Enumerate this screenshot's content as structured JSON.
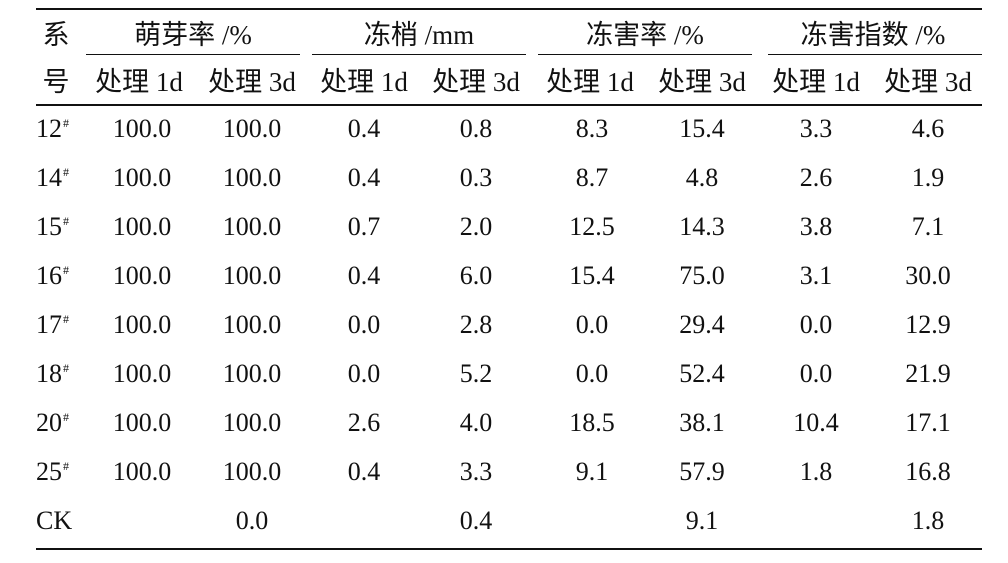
{
  "table": {
    "header": {
      "id_top": "系",
      "id_bottom": "号",
      "groups": [
        "萌芽率 /%",
        "冻梢 /mm",
        "冻害率 /%",
        "冻害指数 /%"
      ],
      "sub": [
        "处理 1d",
        "处理 3d",
        "处理 1d",
        "处理 3d",
        "处理 1d",
        "处理 3d",
        "处理 1d",
        "处理 3d"
      ]
    },
    "rows": [
      {
        "id": "12",
        "mark": "#",
        "values": [
          "100.0",
          "100.0",
          "0.4",
          "0.8",
          "8.3",
          "15.4",
          "3.3",
          "4.6"
        ]
      },
      {
        "id": "14",
        "mark": "#",
        "values": [
          "100.0",
          "100.0",
          "0.4",
          "0.3",
          "8.7",
          "4.8",
          "2.6",
          "1.9"
        ]
      },
      {
        "id": "15",
        "mark": "#",
        "values": [
          "100.0",
          "100.0",
          "0.7",
          "2.0",
          "12.5",
          "14.3",
          "3.8",
          "7.1"
        ]
      },
      {
        "id": "16",
        "mark": "#",
        "values": [
          "100.0",
          "100.0",
          "0.4",
          "6.0",
          "15.4",
          "75.0",
          "3.1",
          "30.0"
        ]
      },
      {
        "id": "17",
        "mark": "#",
        "values": [
          "100.0",
          "100.0",
          "0.0",
          "2.8",
          "0.0",
          "29.4",
          "0.0",
          "12.9"
        ]
      },
      {
        "id": "18",
        "mark": "#",
        "values": [
          "100.0",
          "100.0",
          "0.0",
          "5.2",
          "0.0",
          "52.4",
          "0.0",
          "21.9"
        ]
      },
      {
        "id": "20",
        "mark": "#",
        "values": [
          "100.0",
          "100.0",
          "2.6",
          "4.0",
          "18.5",
          "38.1",
          "10.4",
          "17.1"
        ]
      },
      {
        "id": "25",
        "mark": "#",
        "values": [
          "100.0",
          "100.0",
          "0.4",
          "3.3",
          "9.1",
          "57.9",
          "1.8",
          "16.8"
        ]
      },
      {
        "id": "CK",
        "mark": "",
        "values": [
          "",
          "0.0",
          "",
          "0.4",
          "",
          "9.1",
          "",
          "1.8"
        ]
      }
    ]
  }
}
